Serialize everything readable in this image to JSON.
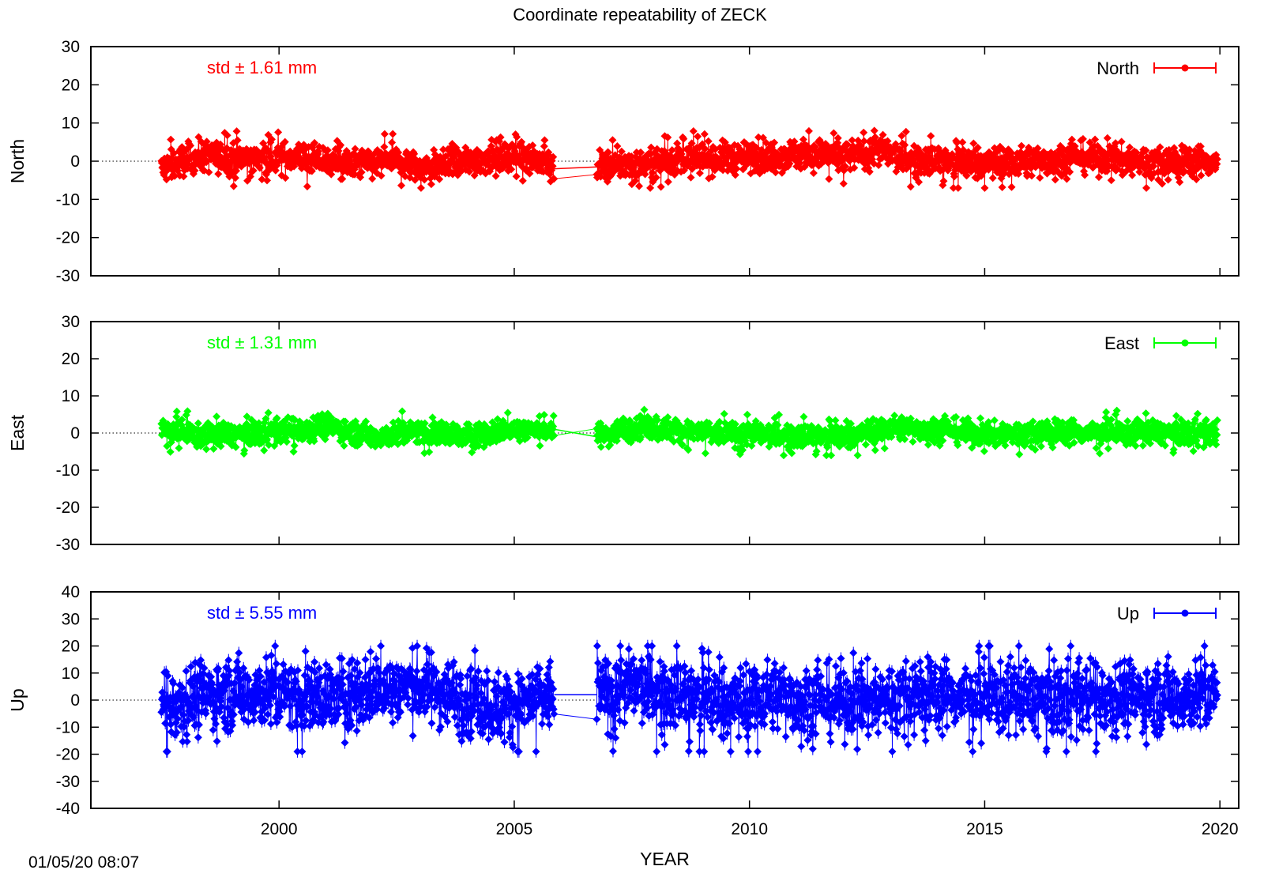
{
  "title": "Coordinate repeatability of ZECK",
  "timestamp": "01/05/20 08:07",
  "chart_data": [
    {
      "type": "scatter",
      "component": "North",
      "ylabel": "North",
      "legend": "North",
      "legend_position": "top-right",
      "std_label": "std ± 1.61 mm",
      "color": "#ff0000",
      "ylim": [
        -30,
        30
      ],
      "yticks": [
        30,
        20,
        10,
        0,
        -10,
        -20,
        -30
      ],
      "xlim": [
        1996,
        2020.4
      ],
      "x_start": 1997.5,
      "gap": [
        2005.85,
        2006.75
      ],
      "x_end": 2019.95,
      "band": {
        "mean": 0,
        "spread": 2.0,
        "max": 8,
        "min": -7
      },
      "series": [
        {
          "name": "North",
          "points": [
            [
              1997.5,
              -2.0
            ],
            [
              1998.3,
              1.5
            ],
            [
              1999.0,
              0.5
            ],
            [
              2000.5,
              1.0
            ],
            [
              2001.5,
              -1.0
            ],
            [
              2002.5,
              0.0
            ],
            [
              2003.0,
              -2.0
            ],
            [
              2004.5,
              1.0
            ],
            [
              2005.2,
              2.0
            ],
            [
              2005.85,
              -2.0
            ],
            [
              2006.75,
              -1.5
            ],
            [
              2007.5,
              -1.0
            ],
            [
              2008.5,
              0.5
            ],
            [
              2010.0,
              1.0
            ],
            [
              2011.0,
              2.0
            ],
            [
              2012.0,
              1.0
            ],
            [
              2012.7,
              3.0
            ],
            [
              2013.2,
              1.0
            ],
            [
              2014.5,
              -0.5
            ],
            [
              2016.0,
              0.0
            ],
            [
              2017.0,
              1.0
            ],
            [
              2018.5,
              0.0
            ],
            [
              2019.95,
              0.0
            ]
          ]
        }
      ]
    },
    {
      "type": "scatter",
      "component": "East",
      "ylabel": "East",
      "legend": "East",
      "legend_position": "top-right",
      "std_label": "std ± 1.31 mm",
      "color": "#00ff00",
      "ylim": [
        -30,
        30
      ],
      "yticks": [
        30,
        20,
        10,
        0,
        -10,
        -20,
        -30
      ],
      "xlim": [
        1996,
        2020.4
      ],
      "x_start": 1997.5,
      "gap": [
        2005.85,
        2006.75
      ],
      "x_end": 2019.95,
      "band": {
        "mean": 0,
        "spread": 1.6,
        "max": 9,
        "min": -6
      },
      "series": [
        {
          "name": "East",
          "points": [
            [
              1997.5,
              1.0
            ],
            [
              1998.5,
              -1.0
            ],
            [
              2000.0,
              0.5
            ],
            [
              2001.0,
              2.0
            ],
            [
              2002.0,
              -1.0
            ],
            [
              2003.0,
              0.5
            ],
            [
              2004.0,
              -1.0
            ],
            [
              2005.0,
              1.0
            ],
            [
              2005.85,
              1.0
            ],
            [
              2006.75,
              -1.0
            ],
            [
              2007.6,
              2.0
            ],
            [
              2009.0,
              0.0
            ],
            [
              2010.5,
              -0.5
            ],
            [
              2012.0,
              -1.0
            ],
            [
              2013.0,
              1.5
            ],
            [
              2014.0,
              1.0
            ],
            [
              2015.0,
              -0.5
            ],
            [
              2016.5,
              0.5
            ],
            [
              2018.0,
              0.0
            ],
            [
              2019.95,
              0.0
            ]
          ]
        }
      ]
    },
    {
      "type": "scatter",
      "component": "Up",
      "ylabel": "Up",
      "legend": "Up",
      "legend_position": "top-right",
      "std_label": "std ± 5.55 mm",
      "color": "#0000ff",
      "ylim": [
        -40,
        40
      ],
      "yticks": [
        40,
        30,
        20,
        10,
        0,
        -10,
        -20,
        -30,
        -40
      ],
      "xlim": [
        1996,
        2020.4
      ],
      "xticks": [
        2000,
        2005,
        2010,
        2015,
        2020
      ],
      "xlabel": "YEAR",
      "x_start": 1997.5,
      "gap": [
        2005.85,
        2006.75
      ],
      "x_end": 2019.95,
      "band": {
        "mean": 0,
        "spread": 6.5,
        "max": 20,
        "min": -19
      },
      "series": [
        {
          "name": "Up",
          "points": [
            [
              1997.5,
              -2.0
            ],
            [
              1998.5,
              2.0
            ],
            [
              1999.5,
              3.0
            ],
            [
              2001.0,
              1.0
            ],
            [
              2002.0,
              4.0
            ],
            [
              2003.0,
              5.0
            ],
            [
              2004.0,
              1.0
            ],
            [
              2004.7,
              -3.0
            ],
            [
              2005.85,
              2.0
            ],
            [
              2006.75,
              2.0
            ],
            [
              2007.6,
              5.0
            ],
            [
              2008.5,
              2.0
            ],
            [
              2009.5,
              -1.0
            ],
            [
              2010.5,
              2.0
            ],
            [
              2011.5,
              -1.0
            ],
            [
              2012.5,
              0.0
            ],
            [
              2013.5,
              3.0
            ],
            [
              2014.5,
              2.0
            ],
            [
              2015.5,
              1.0
            ],
            [
              2016.5,
              0.0
            ],
            [
              2017.5,
              2.0
            ],
            [
              2018.5,
              1.0
            ],
            [
              2019.95,
              2.0
            ]
          ]
        }
      ]
    }
  ]
}
